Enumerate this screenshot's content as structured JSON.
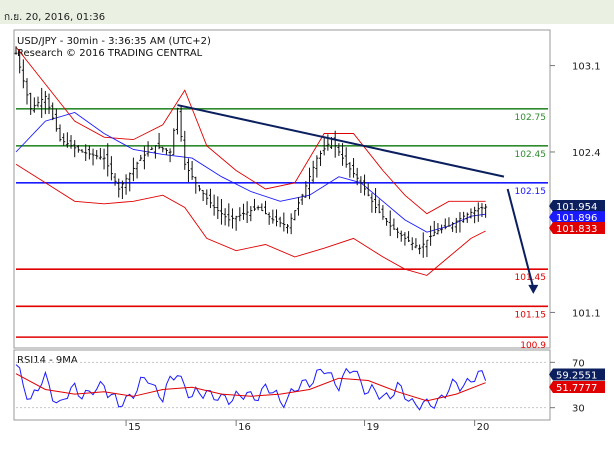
{
  "header": {
    "date": "ก.ย. 20, 2016, 01:36",
    "title": "USD/JPY - 30min - 3:36:35 AM (UTC+2)",
    "credit": "Research © 2016 TRADING CENTRAL"
  },
  "chart_data": [
    {
      "type": "candlestick",
      "title": "USD/JPY - 30min - 3:36:35 AM (UTC+2)",
      "ylim": [
        100.82,
        103.38
      ],
      "yticks": [
        {
          "value": 103.1,
          "label": "103.1"
        },
        {
          "value": 102.4,
          "label": "102.4"
        },
        {
          "value": 101.1,
          "label": "101.1"
        }
      ],
      "xticks": [
        {
          "x": 30,
          "label": "15"
        },
        {
          "x": 60,
          "label": "16"
        },
        {
          "x": 95,
          "label": "19"
        },
        {
          "x": 125,
          "label": "20"
        }
      ],
      "xlim": [
        0,
        145
      ],
      "last_index": 128,
      "levels": [
        {
          "label": "102.75",
          "value": 102.75,
          "color": "#2e8b2e"
        },
        {
          "label": "102.45",
          "value": 102.45,
          "color": "#2e8b2e"
        },
        {
          "label": "102.15",
          "value": 102.15,
          "color": "#1a1aff"
        },
        {
          "label": "101.45",
          "value": 101.45,
          "color": "#e00000"
        },
        {
          "label": "101.15",
          "value": 101.15,
          "color": "#e00000"
        },
        {
          "label": "100.9",
          "value": 100.9,
          "color": "#e00000"
        }
      ],
      "price_tags": [
        {
          "label": "101.954",
          "value": 101.954,
          "color": "#0b1f5e"
        },
        {
          "label": "101.896",
          "value": 101.896,
          "color": "#1a1aff"
        },
        {
          "label": "101.833",
          "value": 101.833,
          "color": "#e00000"
        }
      ],
      "price_path": [
        [
          0,
          103.2
        ],
        [
          4,
          102.75
        ],
        [
          8,
          102.85
        ],
        [
          12,
          102.5
        ],
        [
          18,
          102.4
        ],
        [
          24,
          102.35
        ],
        [
          28,
          102.1
        ],
        [
          34,
          102.35
        ],
        [
          38,
          102.45
        ],
        [
          42,
          102.4
        ],
        [
          44,
          102.75
        ],
        [
          46,
          102.3
        ],
        [
          50,
          102.1
        ],
        [
          54,
          101.95
        ],
        [
          58,
          101.85
        ],
        [
          62,
          101.9
        ],
        [
          66,
          101.95
        ],
        [
          70,
          101.85
        ],
        [
          74,
          101.8
        ],
        [
          78,
          102.05
        ],
        [
          82,
          102.35
        ],
        [
          86,
          102.5
        ],
        [
          90,
          102.3
        ],
        [
          94,
          102.15
        ],
        [
          98,
          101.95
        ],
        [
          102,
          101.8
        ],
        [
          106,
          101.7
        ],
        [
          110,
          101.62
        ],
        [
          114,
          101.75
        ],
        [
          118,
          101.8
        ],
        [
          122,
          101.88
        ],
        [
          126,
          101.94
        ],
        [
          128,
          101.954
        ]
      ],
      "series": [
        {
          "name": "Bollinger upper",
          "color": "#e00000",
          "points": [
            [
              0,
              103.25
            ],
            [
              8,
              102.95
            ],
            [
              16,
              102.65
            ],
            [
              24,
              102.52
            ],
            [
              32,
              102.5
            ],
            [
              40,
              102.62
            ],
            [
              46,
              102.9
            ],
            [
              52,
              102.45
            ],
            [
              60,
              102.25
            ],
            [
              68,
              102.1
            ],
            [
              76,
              102.15
            ],
            [
              84,
              102.55
            ],
            [
              92,
              102.55
            ],
            [
              100,
              102.25
            ],
            [
              106,
              102.05
            ],
            [
              112,
              101.9
            ],
            [
              118,
              102.0
            ],
            [
              124,
              102.0
            ],
            [
              128,
              102.0
            ]
          ]
        },
        {
          "name": "Bollinger lower",
          "color": "#e00000",
          "points": [
            [
              0,
              102.3
            ],
            [
              8,
              102.15
            ],
            [
              16,
              102.0
            ],
            [
              24,
              101.98
            ],
            [
              32,
              102.0
            ],
            [
              40,
              102.05
            ],
            [
              46,
              101.95
            ],
            [
              52,
              101.7
            ],
            [
              60,
              101.6
            ],
            [
              68,
              101.65
            ],
            [
              76,
              101.55
            ],
            [
              84,
              101.62
            ],
            [
              92,
              101.7
            ],
            [
              100,
              101.55
            ],
            [
              106,
              101.45
            ],
            [
              112,
              101.4
            ],
            [
              118,
              101.55
            ],
            [
              124,
              101.7
            ],
            [
              128,
              101.76
            ]
          ]
        },
        {
          "name": "Moving average",
          "color": "#1a1aff",
          "points": [
            [
              0,
              102.4
            ],
            [
              8,
              102.65
            ],
            [
              16,
              102.72
            ],
            [
              24,
              102.55
            ],
            [
              32,
              102.42
            ],
            [
              40,
              102.38
            ],
            [
              48,
              102.35
            ],
            [
              56,
              102.2
            ],
            [
              64,
              102.08
            ],
            [
              72,
              102.0
            ],
            [
              80,
              102.05
            ],
            [
              88,
              102.2
            ],
            [
              94,
              102.15
            ],
            [
              100,
              102.0
            ],
            [
              106,
              101.85
            ],
            [
              112,
              101.75
            ],
            [
              118,
              101.8
            ],
            [
              124,
              101.88
            ],
            [
              128,
              101.896
            ]
          ]
        }
      ],
      "trendline": [
        [
          44,
          102.78
        ],
        [
          133,
          102.2
        ]
      ],
      "arrow": [
        [
          134,
          102.1
        ],
        [
          141,
          101.25
        ]
      ]
    },
    {
      "type": "line",
      "title": "RSI14 - 9MA",
      "ylim": [
        20,
        80
      ],
      "yticks": [
        {
          "value": 70,
          "label": "70"
        },
        {
          "value": 30,
          "label": "30"
        }
      ],
      "xlim": [
        0,
        145
      ],
      "series": [
        {
          "name": "RSI14",
          "color": "#1a1aff",
          "points": [
            [
              0,
              65
            ],
            [
              4,
              38
            ],
            [
              8,
              55
            ],
            [
              12,
              32
            ],
            [
              16,
              48
            ],
            [
              20,
              40
            ],
            [
              24,
              52
            ],
            [
              28,
              30
            ],
            [
              32,
              45
            ],
            [
              36,
              55
            ],
            [
              40,
              40
            ],
            [
              44,
              62
            ],
            [
              48,
              38
            ],
            [
              52,
              46
            ],
            [
              56,
              35
            ],
            [
              60,
              42
            ],
            [
              64,
              38
            ],
            [
              68,
              48
            ],
            [
              72,
              36
            ],
            [
              76,
              44
            ],
            [
              80,
              55
            ],
            [
              84,
              62
            ],
            [
              88,
              52
            ],
            [
              92,
              64
            ],
            [
              96,
              44
            ],
            [
              100,
              40
            ],
            [
              104,
              46
            ],
            [
              108,
              36
            ],
            [
              112,
              30
            ],
            [
              116,
              40
            ],
            [
              120,
              50
            ],
            [
              124,
              54
            ],
            [
              128,
              59
            ]
          ]
        },
        {
          "name": "9MA",
          "color": "#e00000",
          "points": [
            [
              0,
              60
            ],
            [
              8,
              46
            ],
            [
              16,
              42
            ],
            [
              24,
              44
            ],
            [
              32,
              40
            ],
            [
              40,
              46
            ],
            [
              48,
              48
            ],
            [
              56,
              42
            ],
            [
              64,
              40
            ],
            [
              72,
              42
            ],
            [
              80,
              46
            ],
            [
              88,
              56
            ],
            [
              96,
              54
            ],
            [
              104,
              44
            ],
            [
              112,
              36
            ],
            [
              120,
              42
            ],
            [
              128,
              52
            ]
          ]
        }
      ],
      "price_tags": [
        {
          "label": "59.2551",
          "value": 59.2551,
          "color": "#0b1f5e"
        },
        {
          "label": "51.7777",
          "value": 51.7777,
          "color": "#e00000"
        }
      ]
    }
  ]
}
